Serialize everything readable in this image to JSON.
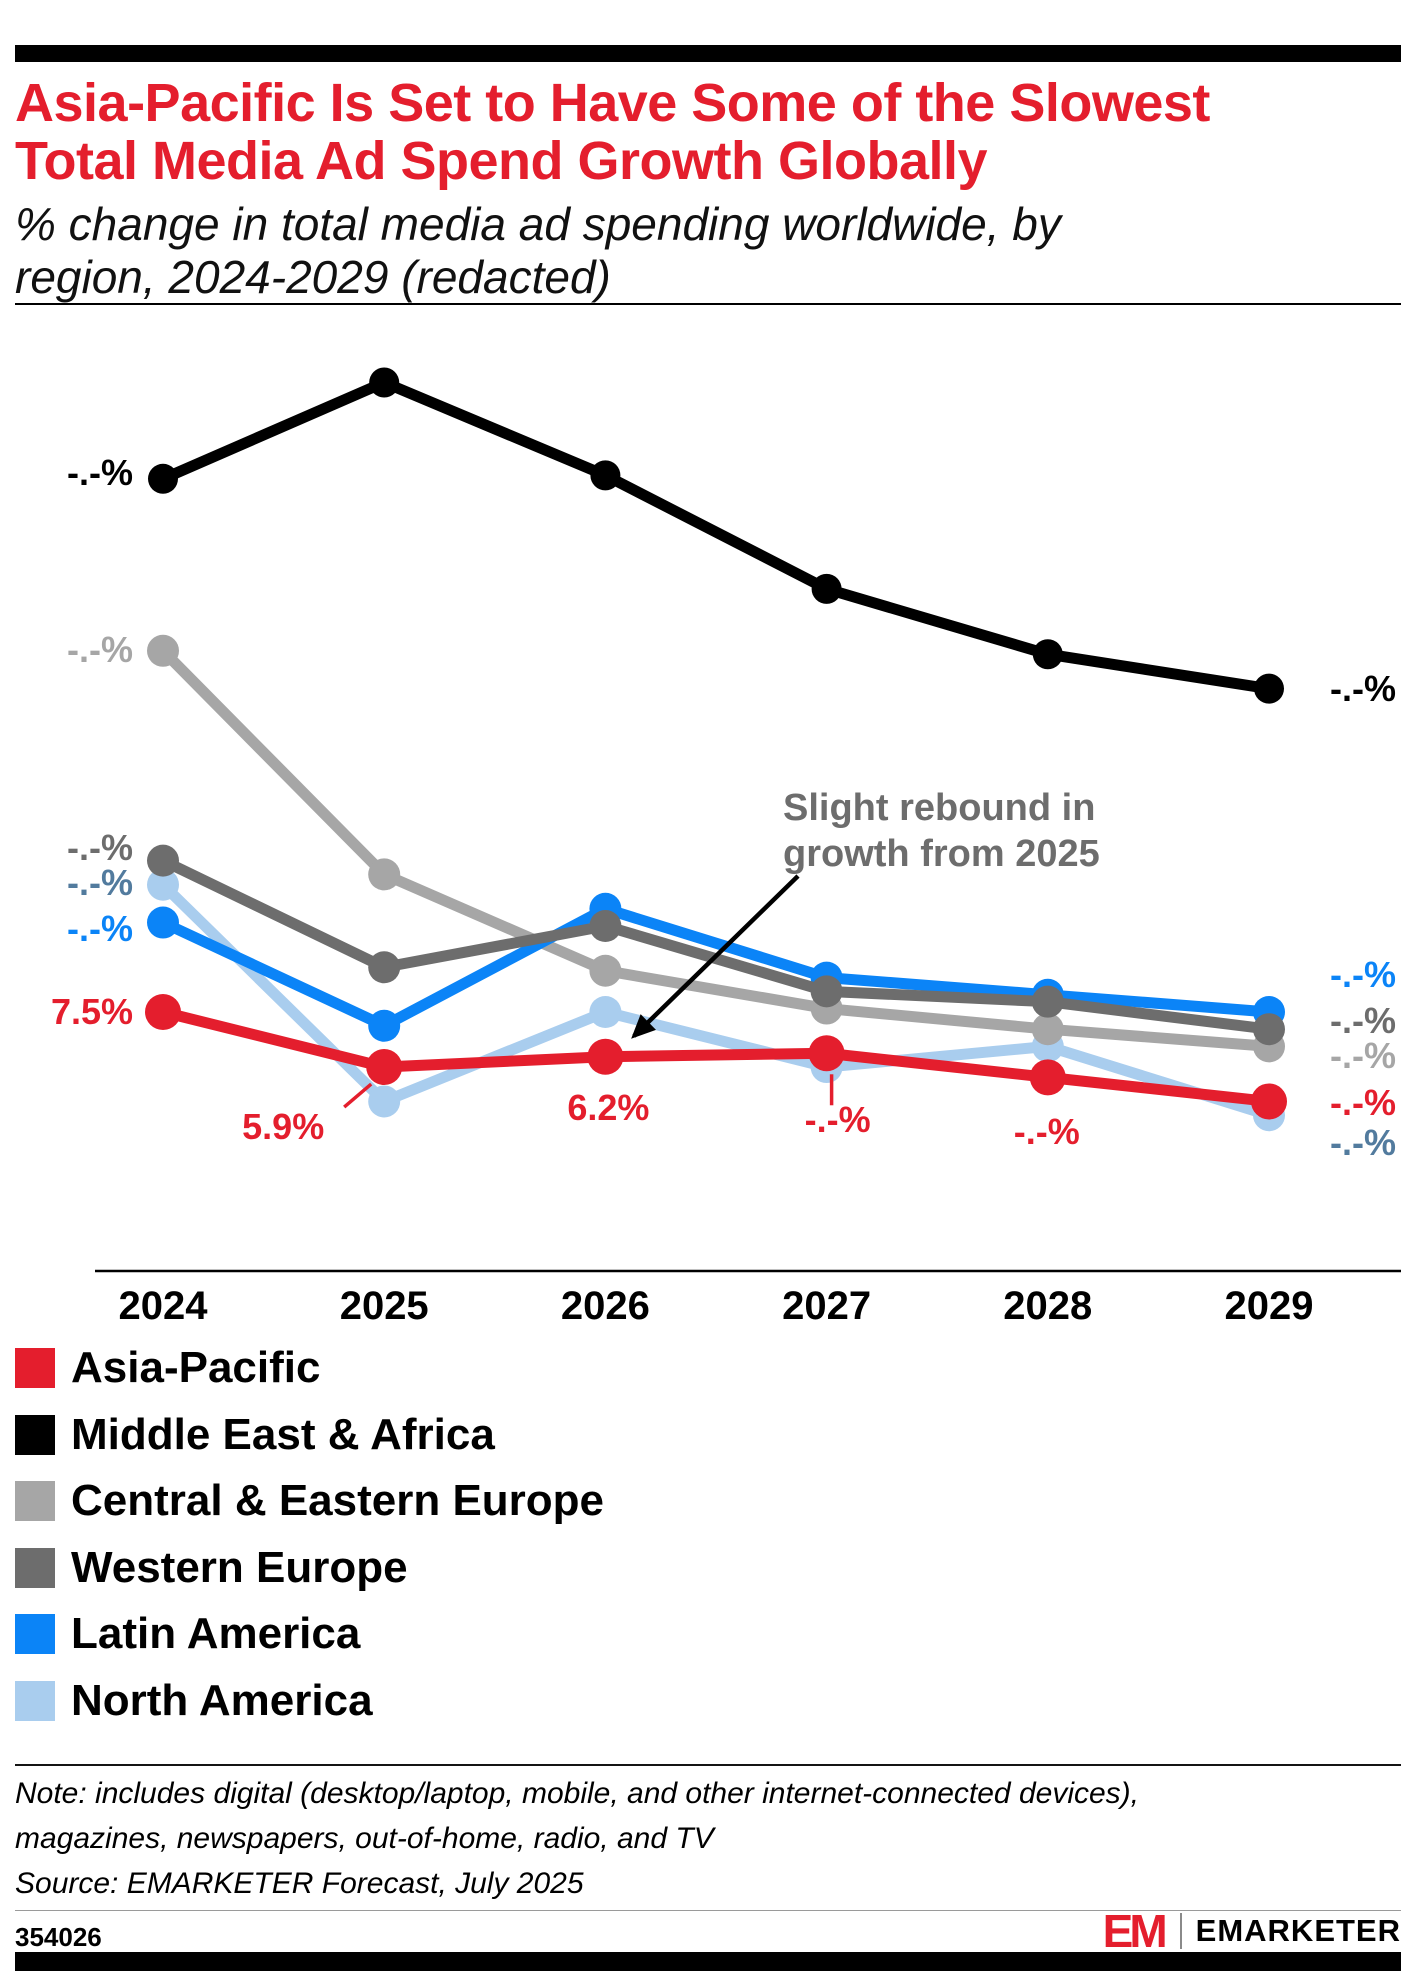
{
  "header": {
    "title_line1": "Asia-Pacific Is Set to Have Some of the Slowest",
    "title_line2": "Total Media Ad Spend Growth Globally",
    "subtitle_line1": "% change in total media ad spending worldwide, by",
    "subtitle_line2": "region, 2024-2029 (redacted)"
  },
  "chart_data": {
    "type": "line",
    "title": "Asia-Pacific Is Set to Have Some of the Slowest Total Media Ad Spend Growth Globally",
    "subtitle": "% change in total media ad spending worldwide, by region, 2024-2029 (redacted)",
    "categories": [
      "2024",
      "2025",
      "2026",
      "2027",
      "2028",
      "2029"
    ],
    "ylabel": "% change in total media ad spending",
    "ylim": [
      3,
      28
    ],
    "grid": false,
    "legend_position": "bottom-left",
    "series": [
      {
        "name": "Asia-Pacific",
        "color": "#e41e2d",
        "values": [
          7.5,
          5.9,
          6.2,
          6.3,
          5.6,
          4.9
        ],
        "start_label": "7.5%",
        "end_label": "-.-%",
        "start_dy": 0,
        "end_dy": 2,
        "point_labels": [
          null,
          {
            "text": "5.9%",
            "dx": -101,
            "dy": 60,
            "leader": "diagonal"
          },
          {
            "text": "6.2%",
            "dx": 3,
            "dy": 51,
            "leader": null
          },
          {
            "text": "-.-%",
            "dx": 11,
            "dy": 67,
            "leader": "vertical"
          },
          {
            "text": "-.-%",
            "dx": -1,
            "dy": 55,
            "leader": null
          },
          null
        ]
      },
      {
        "name": "Middle East & Africa",
        "color": "#000000",
        "values": [
          23.0,
          25.8,
          23.1,
          19.8,
          17.9,
          16.9
        ],
        "start_label": "-.-%",
        "end_label": "-.-%",
        "start_dy": -6,
        "end_dy": 0,
        "point_labels": [
          null,
          null,
          null,
          null,
          null,
          null
        ]
      },
      {
        "name": "Central & Eastern Europe",
        "color": "#a6a6a6",
        "values": [
          18.0,
          11.5,
          8.7,
          7.6,
          7.0,
          6.5
        ],
        "start_label": "-.-%",
        "end_label": "-.-%",
        "start_dy": -1,
        "end_dy": 10,
        "point_labels": [
          null,
          null,
          null,
          null,
          null,
          null
        ]
      },
      {
        "name": "Western Europe",
        "color": "#6d6d6d",
        "values": [
          11.9,
          8.8,
          10.0,
          8.1,
          7.8,
          7.0
        ],
        "start_label": "-.-%",
        "end_label": "-.-%",
        "start_dy": -13,
        "end_dy": -8,
        "point_labels": [
          null,
          null,
          null,
          null,
          null,
          null
        ]
      },
      {
        "name": "Latin America",
        "color": "#0b84f7",
        "values": [
          10.1,
          7.1,
          10.5,
          8.5,
          8.0,
          7.5
        ],
        "start_label": "-.-%",
        "end_label": "-.-%",
        "start_dy": 6,
        "end_dy": -37,
        "point_labels": [
          null,
          null,
          null,
          null,
          null,
          null
        ]
      },
      {
        "name": "North America",
        "color": "#a9cdee",
        "label_color": "#527b9e",
        "values": [
          11.2,
          4.9,
          7.5,
          5.9,
          6.5,
          4.5
        ],
        "start_label": "-.-%",
        "end_label": "-.-%",
        "start_dy": -2,
        "end_dy": 28,
        "point_labels": [
          null,
          null,
          null,
          null,
          null,
          null
        ]
      }
    ],
    "annotation": {
      "line1": "Slight rebound in",
      "line2": "growth from 2025",
      "arrow_target_year": "2026",
      "arrow_target_series": "Asia-Pacific"
    }
  },
  "legend": {
    "items": [
      {
        "label": "Asia-Pacific",
        "color": "#e41e2d"
      },
      {
        "label": "Middle East & Africa",
        "color": "#000000"
      },
      {
        "label": "Central & Eastern Europe",
        "color": "#a6a6a6"
      },
      {
        "label": "Western Europe",
        "color": "#6d6d6d"
      },
      {
        "label": "Latin America",
        "color": "#0b84f7"
      },
      {
        "label": "North America",
        "color": "#a9cdee"
      }
    ]
  },
  "note": {
    "line1": "Note: includes digital (desktop/laptop, mobile, and other internet-connected devices),",
    "line2": "magazines, newspapers, out-of-home, radio, and TV",
    "source": "Source: EMARKETER Forecast, July 2025"
  },
  "footer": {
    "chart_id": "354026",
    "logo_mark": "EM",
    "logo_text": "EMARKETER"
  }
}
